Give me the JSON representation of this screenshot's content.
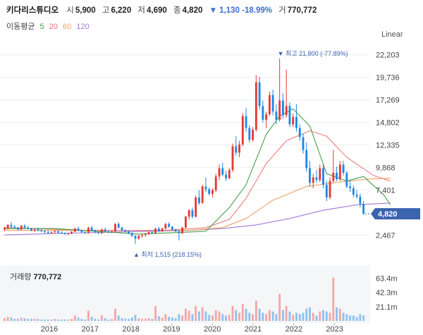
{
  "header": {
    "name": "키다리스튜디오",
    "open_label": "시",
    "open": "5,900",
    "high_label": "고",
    "high": "6,220",
    "low_label": "저",
    "low": "4,690",
    "close_label": "종",
    "close": "4,820",
    "change": "▼ 1,130 -18.99%",
    "volume_label": "거",
    "volume": "770,772"
  },
  "ma_legend": {
    "title": "이동평균",
    "ma5": "5",
    "ma20": "20",
    "ma60": "60",
    "ma120": "120"
  },
  "scale_button": "Linear",
  "volume_panel": {
    "title": "거래량",
    "value": "770,772"
  },
  "colors": {
    "up": "#e53935",
    "down": "#1e88e5",
    "ma5": "#43a047",
    "ma20": "#ef7c7c",
    "ma60": "#f0a060",
    "ma120": "#a07ad8",
    "current": "#3b63b0"
  },
  "chart_data": {
    "type": "candlestick",
    "y_ticks": [
      "22,203",
      "19,736",
      "17,269",
      "14,802",
      "12,335",
      "9,868",
      "7,401",
      "2,467"
    ],
    "volume_ticks": [
      "63.4m",
      "42.3m",
      "21.1m"
    ],
    "x_ticks": [
      "2016",
      "2017",
      "2018",
      "2019",
      "2020",
      "2021",
      "2022",
      "2023"
    ],
    "ylim": [
      1200,
      22800
    ],
    "volume_max": 70,
    "current_price": "4,820",
    "high_annotation": "▼ 최고 21,800 (-77.89%)",
    "low_annotation": "▲ 최저 1,515 (218.15%)",
    "candles": [
      [
        3100,
        3400,
        2900,
        3300,
        4
      ],
      [
        3300,
        3700,
        3100,
        3600,
        6
      ],
      [
        3600,
        3900,
        3300,
        3400,
        5
      ],
      [
        3400,
        3600,
        3200,
        3300,
        3
      ],
      [
        3300,
        3400,
        3000,
        3100,
        3
      ],
      [
        3100,
        3600,
        3000,
        3500,
        5
      ],
      [
        3500,
        3700,
        3200,
        3300,
        4
      ],
      [
        3300,
        3500,
        3100,
        3200,
        3
      ],
      [
        3200,
        3300,
        2900,
        3000,
        3
      ],
      [
        3000,
        3200,
        2800,
        3100,
        3
      ],
      [
        3100,
        3300,
        2900,
        3000,
        3
      ],
      [
        3000,
        3200,
        2800,
        2900,
        2
      ],
      [
        2900,
        3000,
        2700,
        2800,
        2
      ],
      [
        2800,
        3000,
        2600,
        2700,
        2
      ],
      [
        2700,
        2900,
        2600,
        2800,
        2
      ],
      [
        2800,
        3000,
        2700,
        2900,
        3
      ],
      [
        2900,
        3000,
        2700,
        2750,
        2
      ],
      [
        2750,
        2900,
        2600,
        2700,
        2
      ],
      [
        2700,
        2800,
        2500,
        2600,
        2
      ],
      [
        2600,
        2750,
        2500,
        2650,
        2
      ],
      [
        2650,
        2900,
        2600,
        2850,
        3
      ],
      [
        2850,
        3300,
        2800,
        3200,
        8
      ],
      [
        3200,
        3400,
        2900,
        3000,
        5
      ],
      [
        3000,
        3100,
        2700,
        2800,
        3
      ],
      [
        2800,
        2900,
        2600,
        2700,
        2
      ],
      [
        2700,
        3400,
        2650,
        3300,
        15
      ],
      [
        3300,
        3500,
        2900,
        3000,
        6
      ],
      [
        3000,
        3100,
        2700,
        2800,
        3
      ],
      [
        2800,
        2900,
        2600,
        2700,
        2
      ],
      [
        2700,
        3200,
        2600,
        3100,
        8
      ],
      [
        3100,
        3300,
        2800,
        2900,
        4
      ],
      [
        2900,
        3000,
        2700,
        2800,
        2
      ],
      [
        2800,
        3000,
        2700,
        2900,
        3
      ],
      [
        2900,
        3800,
        2800,
        3700,
        18
      ],
      [
        3700,
        3900,
        3200,
        3300,
        8
      ],
      [
        3300,
        3400,
        2900,
        3000,
        4
      ],
      [
        3000,
        3100,
        2800,
        2900,
        3
      ],
      [
        2900,
        3000,
        2600,
        2700,
        3
      ],
      [
        2700,
        2800,
        2300,
        2400,
        5
      ],
      [
        2400,
        2500,
        1515,
        2100,
        9
      ],
      [
        2100,
        2500,
        2000,
        2400,
        4
      ],
      [
        2400,
        2600,
        2200,
        2500,
        3
      ],
      [
        2500,
        2700,
        2300,
        2600,
        3
      ],
      [
        2600,
        2900,
        2500,
        2800,
        4
      ],
      [
        2800,
        3000,
        2600,
        2700,
        3
      ],
      [
        2700,
        3300,
        2600,
        3200,
        22
      ],
      [
        3200,
        3400,
        2800,
        2900,
        7
      ],
      [
        2900,
        3300,
        2800,
        3200,
        5
      ],
      [
        3200,
        3800,
        3100,
        3700,
        10
      ],
      [
        3700,
        3900,
        3300,
        3400,
        6
      ],
      [
        3400,
        3500,
        3000,
        3100,
        5
      ],
      [
        3100,
        3200,
        2800,
        2900,
        4
      ],
      [
        2900,
        3000,
        1900,
        2700,
        10
      ],
      [
        2700,
        3400,
        2600,
        3300,
        8
      ],
      [
        3300,
        4600,
        3200,
        4500,
        18
      ],
      [
        4500,
        5300,
        4200,
        5200,
        15
      ],
      [
        5200,
        5500,
        4300,
        4500,
        10
      ],
      [
        4500,
        6800,
        4400,
        6600,
        22
      ],
      [
        6600,
        7400,
        5800,
        6000,
        14
      ],
      [
        6000,
        8000,
        5900,
        7800,
        20
      ],
      [
        7800,
        8800,
        7200,
        7500,
        14
      ],
      [
        7500,
        7700,
        6800,
        7000,
        9
      ],
      [
        7000,
        7600,
        6600,
        7400,
        8
      ],
      [
        7400,
        9200,
        7200,
        8900,
        16
      ],
      [
        8900,
        10200,
        8500,
        9800,
        14
      ],
      [
        9800,
        10400,
        8900,
        9100,
        10
      ],
      [
        9100,
        9500,
        8400,
        8700,
        8
      ],
      [
        8700,
        9800,
        8600,
        9600,
        9
      ],
      [
        9600,
        12500,
        9400,
        12200,
        22
      ],
      [
        12200,
        13300,
        11200,
        11500,
        16
      ],
      [
        11500,
        12800,
        11000,
        12400,
        12
      ],
      [
        12400,
        15800,
        12200,
        15500,
        25
      ],
      [
        15500,
        16400,
        13800,
        14200,
        18
      ],
      [
        14200,
        14500,
        12600,
        12900,
        12
      ],
      [
        12900,
        14300,
        12700,
        14000,
        10
      ],
      [
        14000,
        20000,
        13800,
        19200,
        30
      ],
      [
        19200,
        19800,
        16200,
        16600,
        18
      ],
      [
        16600,
        17200,
        14800,
        15100,
        12
      ],
      [
        15100,
        16000,
        14200,
        15700,
        10
      ],
      [
        15700,
        18200,
        15500,
        17800,
        16
      ],
      [
        17800,
        18400,
        15600,
        16000,
        14
      ],
      [
        16000,
        16800,
        14600,
        15100,
        10
      ],
      [
        15100,
        21800,
        14900,
        17200,
        40
      ],
      [
        17200,
        18000,
        15200,
        15600,
        16
      ],
      [
        15600,
        20600,
        15300,
        16600,
        22
      ],
      [
        16600,
        17000,
        14300,
        14600,
        14
      ],
      [
        14600,
        15800,
        14300,
        15400,
        9
      ],
      [
        15400,
        16800,
        13800,
        14200,
        12
      ],
      [
        14200,
        14600,
        12800,
        13200,
        10
      ],
      [
        13200,
        13600,
        11400,
        11800,
        12
      ],
      [
        11800,
        12600,
        9400,
        9800,
        18
      ],
      [
        9800,
        10600,
        7800,
        8200,
        20
      ],
      [
        8200,
        9200,
        7600,
        8800,
        12
      ],
      [
        8800,
        9600,
        8200,
        8500,
        8
      ],
      [
        8500,
        10200,
        8300,
        9800,
        14
      ],
      [
        9800,
        10300,
        7600,
        8000,
        16
      ],
      [
        8000,
        8400,
        6200,
        6600,
        14
      ],
      [
        6600,
        8800,
        6400,
        8400,
        12
      ],
      [
        8400,
        11800,
        8200,
        9300,
        64
      ],
      [
        9300,
        10000,
        8400,
        8600,
        20
      ],
      [
        8600,
        10600,
        8400,
        10200,
        18
      ],
      [
        10200,
        10600,
        9000,
        9300,
        12
      ],
      [
        9300,
        9500,
        7600,
        7800,
        10
      ],
      [
        7800,
        8400,
        7200,
        7600,
        8
      ],
      [
        7600,
        7900,
        6600,
        6900,
        8
      ],
      [
        6900,
        7400,
        6500,
        6700,
        6
      ],
      [
        6700,
        7000,
        5500,
        5900,
        10
      ],
      [
        5900,
        6220,
        4690,
        4820,
        8
      ]
    ],
    "ma5": [
      [
        0,
        3200
      ],
      [
        15,
        3200
      ],
      [
        40,
        2600
      ],
      [
        60,
        2900
      ],
      [
        67,
        5500
      ],
      [
        72,
        8000
      ],
      [
        78,
        13500
      ],
      [
        82,
        15500
      ],
      [
        86,
        16300
      ],
      [
        91,
        14400
      ],
      [
        96,
        9200
      ],
      [
        102,
        8400
      ],
      [
        107,
        8900
      ],
      [
        113,
        6900
      ],
      [
        115,
        5800
      ]
    ],
    "ma20": [
      [
        0,
        3300
      ],
      [
        25,
        3000
      ],
      [
        48,
        3000
      ],
      [
        60,
        3300
      ],
      [
        67,
        4200
      ],
      [
        72,
        6500
      ],
      [
        78,
        10300
      ],
      [
        84,
        12800
      ],
      [
        91,
        13900
      ],
      [
        96,
        13300
      ],
      [
        102,
        11000
      ],
      [
        110,
        9000
      ],
      [
        115,
        8400
      ]
    ],
    "ma60": [
      [
        0,
        3000
      ],
      [
        40,
        3000
      ],
      [
        55,
        3000
      ],
      [
        65,
        3300
      ],
      [
        72,
        4300
      ],
      [
        80,
        6300
      ],
      [
        90,
        7800
      ],
      [
        100,
        8300
      ],
      [
        108,
        8600
      ],
      [
        115,
        8700
      ]
    ],
    "ma120": [
      [
        0,
        2500
      ],
      [
        30,
        2800
      ],
      [
        55,
        3000
      ],
      [
        65,
        3200
      ],
      [
        75,
        3600
      ],
      [
        85,
        4300
      ],
      [
        95,
        5200
      ],
      [
        105,
        5800
      ],
      [
        115,
        6000
      ]
    ]
  }
}
